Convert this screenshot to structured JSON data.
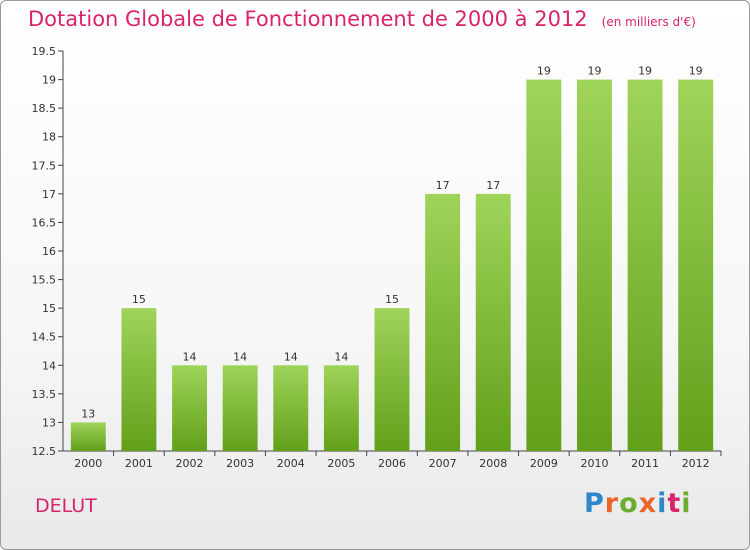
{
  "header": {
    "title": "Dotation Globale de Fonctionnement de 2000 à 2012",
    "unit": "(en milliers d'€)"
  },
  "footer": {
    "commune": "DELUT",
    "logo_text": "Proxiti",
    "logo_colors": [
      "#2e87c8",
      "#e8662a",
      "#6cac2e",
      "#e8662a",
      "#2e87c8",
      "#d9236b",
      "#6cac2e"
    ]
  },
  "colors": {
    "title": "#d9236b",
    "bar_top": "#9fd45a",
    "bar_bottom": "#62a01a",
    "axis": "#444444",
    "grid": "#cccccc"
  },
  "chart_data": {
    "type": "bar",
    "title": "Dotation Globale de Fonctionnement de 2000 à 2012",
    "subtitle": "(en milliers d'€)",
    "xlabel": "",
    "ylabel": "",
    "categories": [
      "2000",
      "2001",
      "2002",
      "2003",
      "2004",
      "2005",
      "2006",
      "2007",
      "2008",
      "2009",
      "2010",
      "2011",
      "2012"
    ],
    "values": [
      13,
      15,
      14,
      14,
      14,
      14,
      15,
      17,
      17,
      19,
      19,
      19,
      19
    ],
    "data_labels": [
      "13",
      "15",
      "14",
      "14",
      "14",
      "14",
      "15",
      "17",
      "17",
      "19",
      "19",
      "19",
      "19"
    ],
    "ylim": [
      12.5,
      19.5
    ],
    "yticks": [
      12.5,
      13,
      13.5,
      14,
      14.5,
      15,
      15.5,
      16,
      16.5,
      17,
      17.5,
      18,
      18.5,
      19,
      19.5
    ],
    "ytick_labels": [
      "12.5",
      "13",
      "13.5",
      "14",
      "14.5",
      "15",
      "15.5",
      "16",
      "16.5",
      "17",
      "17.5",
      "18",
      "18.5",
      "19",
      "19.5"
    ],
    "grid": false,
    "legend": "none"
  }
}
